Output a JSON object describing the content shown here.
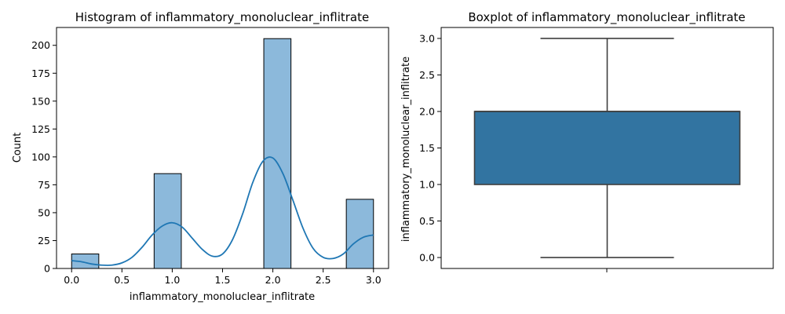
{
  "chart_data": [
    {
      "type": "bar",
      "title": "Histogram of inflammatory_monoluclear_inflitrate",
      "xlabel": "inflammatory_monoluclear_inflitrate",
      "ylabel": "Count",
      "xlim": [
        -0.15,
        3.15
      ],
      "ylim": [
        0,
        216
      ],
      "xticks": [
        "0.0",
        "0.5",
        "1.0",
        "1.5",
        "2.0",
        "2.5",
        "3.0"
      ],
      "yticks": [
        "0",
        "25",
        "50",
        "75",
        "100",
        "125",
        "150",
        "175",
        "200"
      ],
      "bins": [
        {
          "x0": 0.0,
          "x1": 0.27,
          "value": 13
        },
        {
          "x0": 0.82,
          "x1": 1.09,
          "value": 85
        },
        {
          "x0": 1.91,
          "x1": 2.18,
          "value": 206
        },
        {
          "x0": 2.73,
          "x1": 3.0,
          "value": 62
        }
      ],
      "kde": {
        "name": "kde",
        "x": [
          0.0,
          0.1,
          0.2,
          0.3,
          0.4,
          0.5,
          0.6,
          0.7,
          0.8,
          0.9,
          1.0,
          1.1,
          1.2,
          1.3,
          1.4,
          1.5,
          1.6,
          1.7,
          1.8,
          1.9,
          2.0,
          2.1,
          2.2,
          2.3,
          2.4,
          2.5,
          2.6,
          2.7,
          2.8,
          2.9,
          3.0
        ],
        "y": [
          7,
          6,
          4,
          3,
          3,
          5,
          10,
          19,
          30,
          38,
          41,
          37,
          27,
          17,
          11,
          13,
          26,
          49,
          77,
          96,
          99,
          85,
          61,
          36,
          18,
          10,
          9,
          13,
          22,
          28,
          30
        ]
      },
      "colors": {
        "bar": "#8cb9db",
        "edge": "#000000",
        "kde": "#1f77b4"
      },
      "grid": false
    },
    {
      "type": "boxplot",
      "title": "Boxplot of inflammatory_monoluclear_inflitrate",
      "xlabel": "",
      "ylabel": "inflammatory_monoluclear_inflitrate",
      "ylim": [
        -0.15,
        3.15
      ],
      "yticks": [
        "0.0",
        "0.5",
        "1.0",
        "1.5",
        "2.0",
        "2.5",
        "3.0"
      ],
      "stats": {
        "min": 0.0,
        "q1": 1.0,
        "median": 2.0,
        "q3": 2.0,
        "max": 3.0
      },
      "colors": {
        "box": "#3274a1",
        "line": "#3f3f3f"
      },
      "grid": false
    }
  ]
}
